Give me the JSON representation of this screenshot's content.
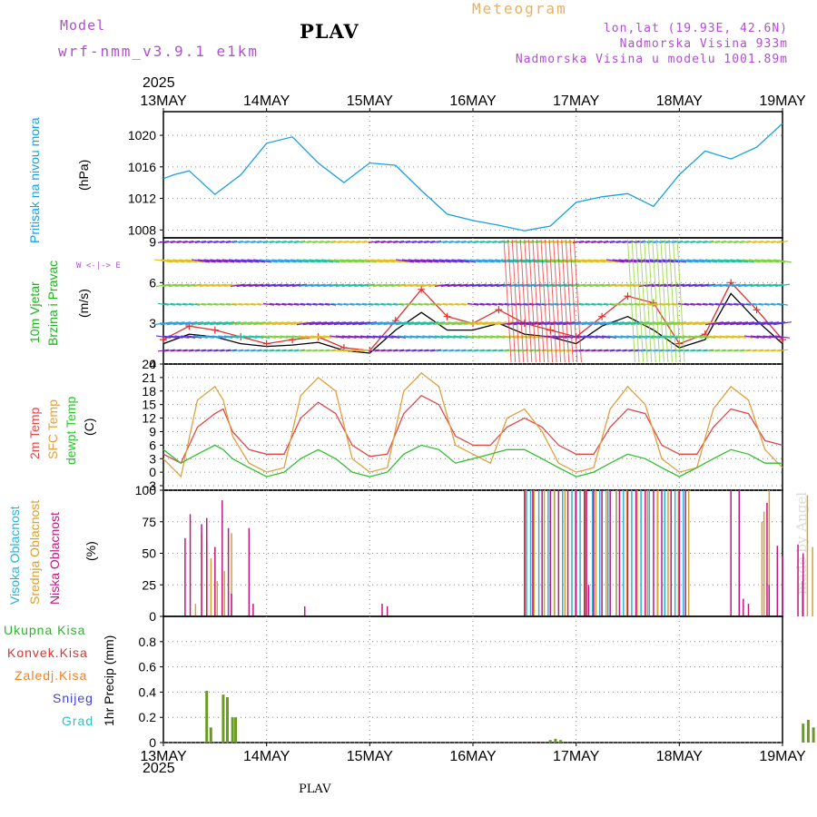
{
  "header": {
    "model_label": "Model",
    "model_name": "wrf-nmm_v3.9.1 e1km",
    "title": "PLAV",
    "meteogram": "Meteogram",
    "coords": "lon,lat (19.93E, 42.6N)",
    "elevation": "Nadmorska Visina 933m",
    "model_elevation": "Nadmorska Visina u modelu 1001.89m",
    "year_top": "2025",
    "year_bottom": "2025",
    "footer": "PLAV",
    "credit": "made by Angel"
  },
  "colors": {
    "pressure": "#1aa0e0",
    "temp2m": "#e04848",
    "sfc": "#e0a040",
    "dewpt": "#30c030",
    "high_cloud": "#30b0d8",
    "mid_cloud": "#d8a030",
    "low_cloud": "#c01880",
    "total_precip": "#30b030",
    "conv_precip": "#e03030",
    "frz_precip": "#f08020",
    "snow": "#4040e0",
    "grad": "#30c0c0",
    "wind_speed": "#000000",
    "gust": "#e03030"
  },
  "chart_data": {
    "type": "line",
    "x_tick_labels": [
      "13MAY",
      "14MAY",
      "15MAY",
      "16MAY",
      "17MAY",
      "18MAY",
      "19MAY"
    ],
    "panels": [
      {
        "id": "pressure",
        "labels": [
          {
            "text": "Pritisak na nivou mora",
            "color": "#1aa0e0"
          }
        ],
        "unit": "(hPa)",
        "ylim": [
          1007,
          1023
        ],
        "yticks": [
          1008,
          1012,
          1016,
          1020
        ],
        "series": [
          {
            "x": [
              0,
              0.1,
              0.25,
              0.5,
              0.75,
              1.0,
              1.25,
              1.5,
              1.75,
              2.0,
              2.25,
              2.5,
              2.75,
              3.0,
              3.25,
              3.5,
              3.75,
              4.0,
              4.25,
              4.5,
              4.75,
              5.0,
              5.25,
              5.5,
              5.75,
              6.0
            ],
            "y": [
              1014.5,
              1015,
              1015.5,
              1012.5,
              1015,
              1019,
              1019.8,
              1016.5,
              1014,
              1016.5,
              1016.2,
              1013,
              1010,
              1009.2,
              1008.6,
              1007.9,
              1008.5,
              1011.5,
              1012.2,
              1012.6,
              1011,
              1015,
              1018,
              1017,
              1018.5,
              1021.5
            ]
          }
        ]
      },
      {
        "id": "wind",
        "labels": [
          {
            "text": "10m Vjetar",
            "color": "#20b020"
          },
          {
            "text": "Brzina i Pravac",
            "color": "#20b020"
          }
        ],
        "unit": "(m/s)",
        "compass": "W <-|-> E",
        "ylim": [
          0,
          9.3
        ],
        "yticks": [
          0,
          3,
          6,
          9
        ],
        "series": [
          {
            "x": [
              0,
              0.25,
              0.5,
              0.75,
              1.0,
              1.25,
              1.5,
              1.75,
              2.0,
              2.25,
              2.5,
              2.75,
              3.0,
              3.25,
              3.5,
              3.75,
              4.0,
              4.25,
              4.5,
              4.75,
              5.0,
              5.25,
              5.5,
              5.75,
              6.0
            ],
            "y": [
              1.5,
              2.2,
              2.0,
              1.5,
              1.3,
              1.4,
              1.6,
              1.0,
              0.8,
              2.5,
              3.8,
              2.5,
              2.5,
              3.0,
              2.2,
              2.0,
              1.5,
              2.8,
              3.5,
              2.5,
              1.2,
              1.8,
              5.2,
              3.2,
              1.5
            ]
          },
          {
            "x": [
              0,
              0.25,
              0.5,
              0.75,
              1.0,
              1.25,
              1.5,
              1.75,
              2.0,
              2.25,
              2.5,
              2.75,
              3.0,
              3.25,
              3.5,
              3.75,
              4.0,
              4.25,
              4.5,
              4.75,
              5.0,
              5.25,
              5.5,
              5.75,
              6.0
            ],
            "y": [
              1.8,
              2.8,
              2.5,
              2.0,
              1.5,
              1.8,
              2.0,
              1.2,
              1.0,
              3.2,
              5.5,
              3.5,
              3.0,
              4.0,
              3.0,
              2.5,
              2.0,
              3.5,
              5.0,
              4.5,
              1.5,
              2.2,
              6.0,
              4.0,
              1.8
            ]
          }
        ]
      },
      {
        "id": "temperature",
        "labels": [
          {
            "text": "2m Temp",
            "color": "#e04848"
          },
          {
            "text": "SFC Temp",
            "color": "#e0a040"
          },
          {
            "text": "dewpt Temp",
            "color": "#30c030"
          }
        ],
        "unit": "(C)",
        "ylim": [
          -4,
          24
        ],
        "yticks": [
          -3,
          0,
          3,
          6,
          9,
          12,
          15,
          18,
          21,
          24
        ],
        "series": [
          {
            "x": [
              0,
              0.17,
              0.33,
              0.5,
              0.58,
              0.67,
              0.83,
              1.0,
              1.17,
              1.33,
              1.5,
              1.67,
              1.83,
              2.0,
              2.17,
              2.33,
              2.5,
              2.67,
              2.83,
              3.0,
              3.17,
              3.33,
              3.5,
              3.67,
              3.83,
              4.0,
              4.17,
              4.33,
              4.5,
              4.67,
              4.83,
              5.0,
              5.17,
              5.33,
              5.5,
              5.67,
              5.83,
              6.0
            ],
            "y": [
              4,
              2,
              10,
              13,
              14,
              9,
              5,
              4,
              4,
              12,
              15.5,
              13,
              6,
              3.5,
              4,
              13,
              17,
              15,
              8,
              6,
              6,
              10,
              12,
              10,
              6,
              4,
              4,
              10,
              14,
              13,
              6,
              4,
              4,
              10,
              14,
              13,
              7,
              6
            ]
          },
          {
            "x": [
              0,
              0.17,
              0.33,
              0.5,
              0.58,
              0.67,
              0.83,
              1.0,
              1.17,
              1.33,
              1.5,
              1.67,
              1.83,
              2.0,
              2.17,
              2.33,
              2.5,
              2.67,
              2.83,
              3.0,
              3.17,
              3.33,
              3.5,
              3.67,
              3.83,
              4.0,
              4.17,
              4.33,
              4.5,
              4.67,
              4.83,
              5.0,
              5.17,
              5.33,
              5.5,
              5.67,
              5.83,
              6.0
            ],
            "y": [
              3,
              -1,
              16,
              19,
              16,
              8,
              2,
              0,
              1,
              17,
              21,
              18,
              3,
              0,
              1,
              18,
              22,
              19,
              6,
              4,
              2,
              12,
              14,
              9,
              2,
              0,
              1,
              14,
              19,
              15,
              3,
              0,
              1,
              14,
              19,
              16,
              5,
              1
            ]
          },
          {
            "x": [
              0,
              0.17,
              0.33,
              0.5,
              0.58,
              0.67,
              0.83,
              1.0,
              1.17,
              1.33,
              1.5,
              1.67,
              1.83,
              2.0,
              2.17,
              2.33,
              2.5,
              2.67,
              2.83,
              3.0,
              3.17,
              3.33,
              3.5,
              3.67,
              3.83,
              4.0,
              4.17,
              4.33,
              4.5,
              4.67,
              4.83,
              5.0,
              5.17,
              5.33,
              5.5,
              5.67,
              5.83,
              6.0
            ],
            "y": [
              5,
              2,
              4,
              6,
              5,
              3,
              1,
              -1,
              0,
              3,
              5,
              3,
              0,
              -1,
              0,
              4,
              6,
              5,
              2,
              3,
              4,
              5,
              5,
              3,
              1,
              -1,
              0,
              2,
              4,
              3,
              1,
              -1,
              1,
              3,
              5,
              4,
              2,
              2
            ]
          }
        ]
      },
      {
        "id": "clouds",
        "labels": [
          {
            "text": "Visoka Oblacnost",
            "color": "#30b0d8"
          },
          {
            "text": "Srednja Oblacnost",
            "color": "#d8a030"
          },
          {
            "text": "Niska Oblacnost",
            "color": "#c01880"
          }
        ],
        "unit": "(%)",
        "ylim": [
          0,
          100
        ],
        "yticks": [
          0,
          25,
          50,
          75,
          100
        ],
        "low": [
          [
            0.21,
            62
          ],
          [
            0.26,
            81
          ],
          [
            0.37,
            73
          ],
          [
            0.42,
            78
          ],
          [
            0.5,
            55
          ],
          [
            0.57,
            92
          ],
          [
            0.63,
            70
          ],
          [
            0.66,
            18
          ],
          [
            0.83,
            70
          ],
          [
            0.87,
            10
          ],
          [
            1.37,
            8
          ],
          [
            2.12,
            10
          ],
          [
            2.17,
            8
          ],
          [
            3.5,
            100
          ],
          [
            3.58,
            100
          ],
          [
            3.67,
            100
          ],
          [
            3.75,
            100
          ],
          [
            3.83,
            100
          ],
          [
            3.92,
            100
          ],
          [
            4.0,
            100
          ],
          [
            4.08,
            100
          ],
          [
            4.17,
            100
          ],
          [
            4.25,
            100
          ],
          [
            4.33,
            100
          ],
          [
            4.42,
            100
          ],
          [
            4.5,
            100
          ],
          [
            4.58,
            100
          ],
          [
            4.67,
            100
          ],
          [
            4.75,
            100
          ],
          [
            4.83,
            100
          ],
          [
            4.92,
            100
          ],
          [
            5.0,
            100
          ],
          [
            5.06,
            100
          ],
          [
            4.1,
            100
          ],
          [
            4.12,
            25
          ],
          [
            5.5,
            100
          ],
          [
            5.58,
            100
          ],
          [
            5.62,
            14
          ],
          [
            5.67,
            10
          ],
          [
            5.85,
            90
          ],
          [
            5.87,
            25
          ],
          [
            6.15,
            57
          ],
          [
            6.2,
            50
          ],
          [
            5.95,
            56
          ],
          [
            6.0,
            48
          ]
        ],
        "mid": [
          [
            0.32,
            10
          ],
          [
            0.38,
            66
          ],
          [
            0.43,
            60
          ],
          [
            0.47,
            46
          ],
          [
            0.53,
            28
          ],
          [
            0.6,
            36
          ],
          [
            0.67,
            66
          ],
          [
            3.52,
            100
          ],
          [
            3.6,
            100
          ],
          [
            3.7,
            100
          ],
          [
            3.8,
            100
          ],
          [
            3.9,
            100
          ],
          [
            4.0,
            100
          ],
          [
            4.1,
            100
          ],
          [
            4.2,
            100
          ],
          [
            4.3,
            100
          ],
          [
            4.4,
            100
          ],
          [
            4.5,
            100
          ],
          [
            4.6,
            100
          ],
          [
            4.7,
            100
          ],
          [
            4.8,
            100
          ],
          [
            4.9,
            100
          ],
          [
            5.0,
            100
          ],
          [
            5.1,
            100
          ],
          [
            5.81,
            75
          ],
          [
            5.83,
            83
          ],
          [
            5.88,
            100
          ],
          [
            6.2,
            28
          ],
          [
            6.25,
            96
          ],
          [
            6.3,
            55
          ],
          [
            6.35,
            44
          ]
        ],
        "high": [
          [
            3.51,
            100
          ],
          [
            3.55,
            100
          ],
          [
            3.63,
            100
          ],
          [
            3.72,
            100
          ],
          [
            3.78,
            100
          ],
          [
            3.86,
            100
          ],
          [
            3.95,
            100
          ],
          [
            4.03,
            100
          ],
          [
            4.15,
            100
          ],
          [
            4.22,
            100
          ],
          [
            4.3,
            100
          ],
          [
            4.38,
            100
          ],
          [
            4.45,
            100
          ],
          [
            4.53,
            100
          ],
          [
            4.62,
            100
          ],
          [
            4.7,
            100
          ],
          [
            4.78,
            100
          ],
          [
            4.85,
            100
          ],
          [
            4.95,
            100
          ],
          [
            5.03,
            100
          ]
        ]
      },
      {
        "id": "precip",
        "labels": [
          {
            "text": "Ukupna Kisa",
            "color": "#30b030"
          },
          {
            "text": "Konvek.Kisa",
            "color": "#e03030"
          },
          {
            "text": "Zaledj.Kisa",
            "color": "#f08020"
          },
          {
            "text": "Snijeg",
            "color": "#4040e0"
          },
          {
            "text": "Grad",
            "color": "#30c0c0"
          }
        ],
        "unit": "1hr Precip (mm)",
        "ylim": [
          0,
          1.0
        ],
        "yticks": [
          0,
          0.2,
          0.4,
          0.6,
          0.8
        ],
        "total": [
          [
            0.42,
            0.41
          ],
          [
            0.46,
            0.12
          ],
          [
            0.58,
            0.38
          ],
          [
            0.62,
            0.36
          ],
          [
            0.67,
            0.2
          ],
          [
            0.7,
            0.2
          ],
          [
            3.75,
            0.02
          ],
          [
            3.8,
            0.03
          ],
          [
            3.85,
            0.02
          ],
          [
            6.2,
            0.15
          ],
          [
            6.25,
            0.18
          ],
          [
            6.3,
            0.12
          ],
          [
            6.35,
            0.1
          ],
          [
            6.4,
            0.07
          ],
          [
            6.45,
            0.04
          ]
        ]
      }
    ]
  }
}
